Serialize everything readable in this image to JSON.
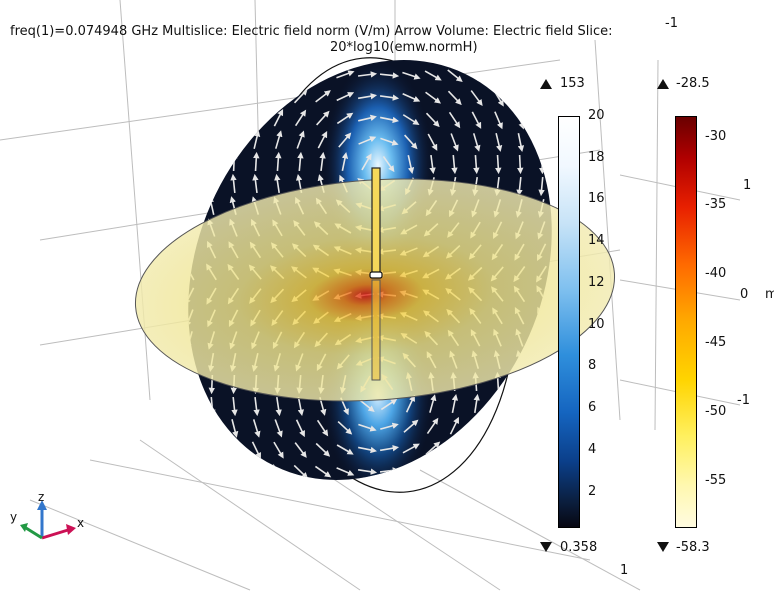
{
  "plot_title_line1": "freq(1)=0.074948 GHz Multislice: Electric field norm (V/m)  Arrow Volume: Electric field  Slice:",
  "plot_title_line2": "20*log10(emw.normH)",
  "axis_numbers": {
    "top_right": "-1",
    "right_upper": "1",
    "right_middle": "0",
    "right_middle_unit": "m",
    "right_lower": "-1",
    "bottom": "1"
  },
  "colorbar_field": {
    "max_label": "153",
    "min_label": "0.358",
    "ticks": [
      "20",
      "18",
      "16",
      "14",
      "12",
      "10",
      "8",
      "6",
      "4",
      "2"
    ],
    "tick_values": [
      20,
      18,
      16,
      14,
      12,
      10,
      8,
      6,
      4,
      2
    ],
    "range": [
      0.358,
      20.0
    ]
  },
  "colorbar_h": {
    "max_label": "-28.5",
    "min_label": "-58.3",
    "ticks": [
      "-30",
      "-35",
      "-40",
      "-45",
      "-50",
      "-55"
    ],
    "tick_values": [
      -30,
      -35,
      -40,
      -45,
      -50,
      -55
    ],
    "range": [
      -58.3,
      -28.5
    ]
  },
  "triad": {
    "z": "z",
    "y": "y",
    "x": "x"
  },
  "colors": {
    "x_axis": "#cc1155",
    "y_axis": "#229944",
    "z_axis": "#3377cc"
  }
}
